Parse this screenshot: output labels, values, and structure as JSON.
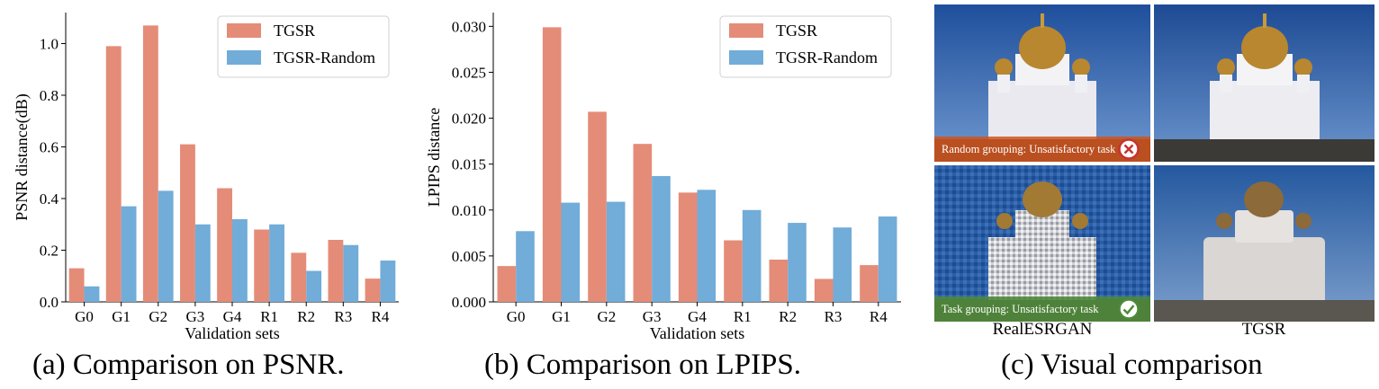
{
  "chart_data": [
    {
      "type": "bar",
      "categories": [
        "G0",
        "G1",
        "G2",
        "G3",
        "G4",
        "R1",
        "R2",
        "R3",
        "R4"
      ],
      "series": [
        {
          "name": "TGSR",
          "values": [
            0.13,
            0.99,
            1.07,
            0.61,
            0.44,
            0.28,
            0.19,
            0.24,
            0.09
          ]
        },
        {
          "name": "TGSR-Random",
          "values": [
            0.06,
            0.37,
            0.43,
            0.3,
            0.32,
            0.3,
            0.12,
            0.22,
            0.16
          ]
        }
      ],
      "xlabel": "Validation sets",
      "ylabel": "PSNR distance(dB)",
      "ylim": [
        0,
        1.12
      ],
      "yticks": [
        "0.0",
        "0.2",
        "0.4",
        "0.6",
        "0.8",
        "1.0"
      ],
      "legend_position": "top-right",
      "grid": false
    },
    {
      "type": "bar",
      "categories": [
        "G0",
        "G1",
        "G2",
        "G3",
        "G4",
        "R1",
        "R2",
        "R3",
        "R4"
      ],
      "series": [
        {
          "name": "TGSR",
          "values": [
            0.0039,
            0.0299,
            0.0207,
            0.0172,
            0.0119,
            0.0067,
            0.0046,
            0.0025,
            0.004
          ]
        },
        {
          "name": "TGSR-Random",
          "values": [
            0.0077,
            0.0108,
            0.0109,
            0.0137,
            0.0122,
            0.01,
            0.0086,
            0.0081,
            0.0093
          ]
        }
      ],
      "xlabel": "Validation sets",
      "ylabel": "LPIPS distance",
      "ylim": [
        0,
        0.0315
      ],
      "yticks": [
        "0.000",
        "0.005",
        "0.010",
        "0.015",
        "0.020",
        "0.025",
        "0.030"
      ],
      "legend_position": "top-right",
      "grid": false
    }
  ],
  "colors": {
    "tgsr": "#e48c78",
    "random": "#72acd8",
    "good": "#4e8a39",
    "bad": "#d0541c",
    "bad_icon": "#c7342f"
  },
  "captions": {
    "a": "(a) Comparison on PSNR.",
    "b": "(b) Comparison on LPIPS.",
    "c": "(c) Visual comparison"
  },
  "visual": {
    "banner_random": "Random grouping: Unsatisfactory task",
    "banner_task": "Task grouping: Unsatisfactory task",
    "label_left": "RealESRGAN",
    "label_right": "TGSR"
  }
}
